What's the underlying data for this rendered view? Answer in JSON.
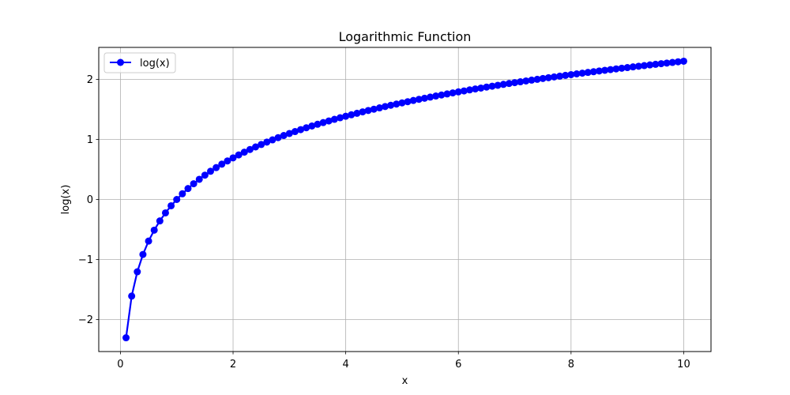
{
  "chart_data": {
    "type": "line",
    "title": "Logarithmic Function",
    "xlabel": "x",
    "ylabel": "log(x)",
    "xlim": [
      -0.3845,
      10.4845
    ],
    "ylim": [
      -2.5328,
      2.5328
    ],
    "xticks": [
      0,
      2,
      4,
      6,
      8,
      10
    ],
    "yticks": [
      -2,
      -1,
      0,
      1,
      2
    ],
    "xtick_labels": [
      "0",
      "2",
      "4",
      "6",
      "8",
      "10"
    ],
    "ytick_labels": [
      "−2",
      "−1",
      "0",
      "1",
      "2"
    ],
    "grid": true,
    "legend_position": "top-left",
    "series": [
      {
        "name": "log(x)",
        "color": "#0000ff",
        "marker": "circle",
        "x": [
          0.1,
          0.2,
          0.3,
          0.4,
          0.5,
          0.6,
          0.7,
          0.8,
          0.9,
          1.0,
          1.1,
          1.2,
          1.3,
          1.4,
          1.5,
          1.6,
          1.7,
          1.8,
          1.9,
          2.0,
          2.1,
          2.2,
          2.3,
          2.4,
          2.5,
          2.6,
          2.7,
          2.8,
          2.9,
          3.0,
          3.1,
          3.2,
          3.3,
          3.4,
          3.5,
          3.6,
          3.7,
          3.8,
          3.9,
          4.0,
          4.1,
          4.2,
          4.3,
          4.4,
          4.5,
          4.6,
          4.7,
          4.8,
          4.9,
          5.0,
          5.1,
          5.2,
          5.3,
          5.4,
          5.5,
          5.6,
          5.7,
          5.8,
          5.9,
          6.0,
          6.1,
          6.2,
          6.3,
          6.4,
          6.5,
          6.6,
          6.7,
          6.8,
          6.9,
          7.0,
          7.1,
          7.2,
          7.3,
          7.4,
          7.5,
          7.6,
          7.7,
          7.8,
          7.9,
          8.0,
          8.1,
          8.2,
          8.3,
          8.4,
          8.5,
          8.6,
          8.7,
          8.8,
          8.9,
          9.0,
          9.1,
          9.2,
          9.3,
          9.4,
          9.5,
          9.6,
          9.7,
          9.8,
          9.9,
          10.0
        ],
        "y": [
          -2.303,
          -1.609,
          -1.204,
          -0.916,
          -0.693,
          -0.511,
          -0.357,
          -0.223,
          -0.105,
          0.0,
          0.095,
          0.182,
          0.262,
          0.336,
          0.405,
          0.47,
          0.531,
          0.588,
          0.642,
          0.693,
          0.742,
          0.788,
          0.833,
          0.875,
          0.916,
          0.956,
          0.993,
          1.03,
          1.065,
          1.099,
          1.131,
          1.163,
          1.194,
          1.224,
          1.253,
          1.281,
          1.308,
          1.335,
          1.361,
          1.386,
          1.411,
          1.435,
          1.459,
          1.482,
          1.504,
          1.526,
          1.548,
          1.569,
          1.589,
          1.609,
          1.629,
          1.649,
          1.668,
          1.686,
          1.705,
          1.723,
          1.74,
          1.758,
          1.775,
          1.792,
          1.808,
          1.825,
          1.841,
          1.856,
          1.872,
          1.887,
          1.902,
          1.917,
          1.932,
          1.946,
          1.96,
          1.974,
          1.988,
          2.001,
          2.015,
          2.028,
          2.041,
          2.054,
          2.067,
          2.079,
          2.092,
          2.104,
          2.116,
          2.128,
          2.14,
          2.152,
          2.163,
          2.175,
          2.186,
          2.197,
          2.208,
          2.219,
          2.23,
          2.241,
          2.251,
          2.262,
          2.272,
          2.282,
          2.293,
          2.303
        ]
      }
    ]
  }
}
